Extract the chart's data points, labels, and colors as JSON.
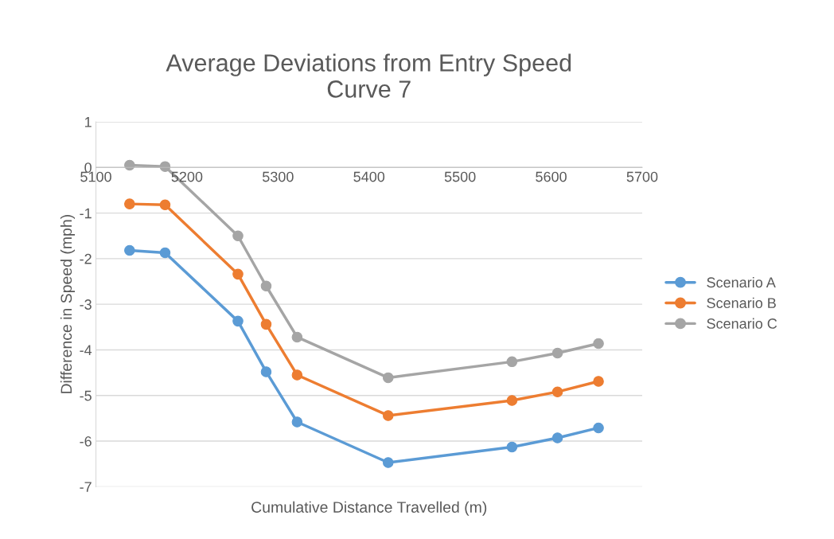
{
  "chart_data": {
    "type": "line",
    "title": "Average Deviations from Entry Speed\nCurve 7",
    "xlabel": "Cumulative Distance Travelled (m)",
    "ylabel": "Difference in Speed (mph)",
    "x": [
      5137,
      5176,
      5256,
      5287,
      5321,
      5421,
      5557,
      5607,
      5652
    ],
    "series": [
      {
        "name": "Scenario A",
        "color": "#5b9bd5",
        "values": [
          -1.82,
          -1.87,
          -3.37,
          -4.48,
          -5.58,
          -6.47,
          -6.13,
          -5.93,
          -5.71
        ]
      },
      {
        "name": "Scenario B",
        "color": "#ed7d31",
        "values": [
          -0.8,
          -0.82,
          -2.34,
          -3.44,
          -4.55,
          -5.44,
          -5.11,
          -4.92,
          -4.69
        ]
      },
      {
        "name": "Scenario C",
        "color": "#a5a5a5",
        "values": [
          0.05,
          0.02,
          -1.5,
          -2.6,
          -3.72,
          -4.61,
          -4.26,
          -4.07,
          -3.86
        ]
      }
    ],
    "xlim": [
      5100,
      5700
    ],
    "xticks": [
      5100,
      5200,
      5300,
      5400,
      5500,
      5600,
      5700
    ],
    "ylim": [
      -7,
      1
    ],
    "yticks": [
      -7,
      -6,
      -5,
      -4,
      -3,
      -2,
      -1,
      0,
      1
    ],
    "grid": "y",
    "legend": "right",
    "marker": "circle",
    "line_style": "solid"
  }
}
